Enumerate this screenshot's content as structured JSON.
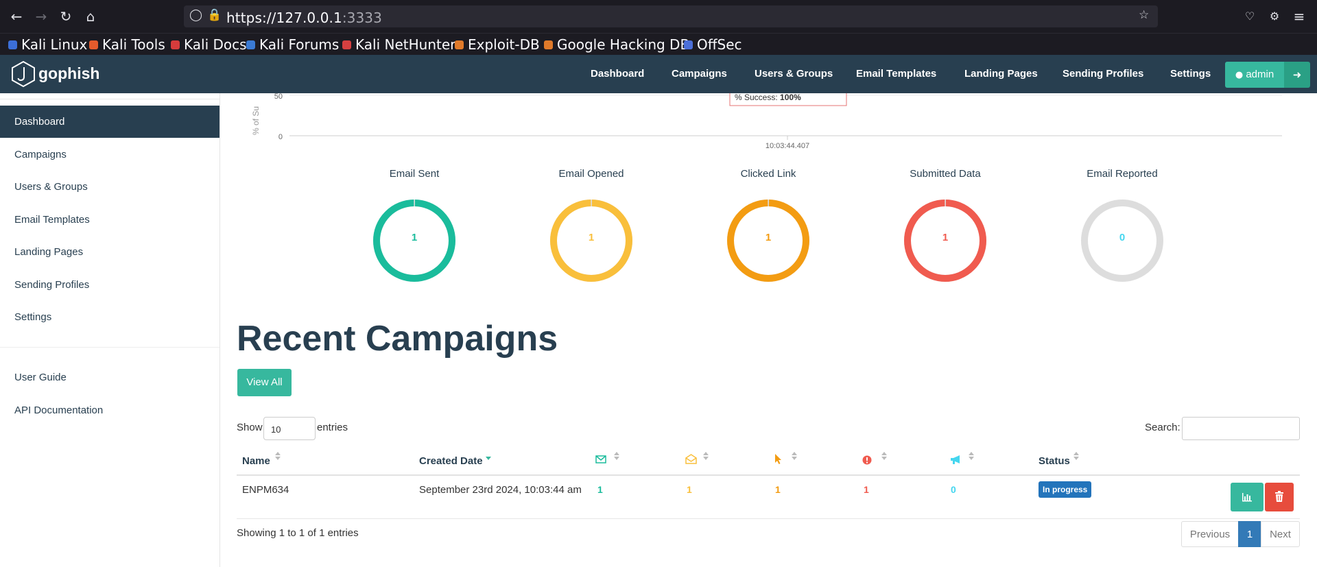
{
  "browser": {
    "url_host": "https://127.0.0.1",
    "url_port": ":3333",
    "bookmarks": [
      {
        "label": "Kali Linux",
        "color": "#3c6fd8"
      },
      {
        "label": "Kali Tools",
        "color": "#e55b2c"
      },
      {
        "label": "Kali Docs",
        "color": "#d63c3c"
      },
      {
        "label": "Kali Forums",
        "color": "#3a7ad4"
      },
      {
        "label": "Kali NetHunter",
        "color": "#d64040"
      },
      {
        "label": "Exploit-DB",
        "color": "#e07a2a"
      },
      {
        "label": "Google Hacking DB",
        "color": "#e07a2a"
      },
      {
        "label": "OffSec",
        "color": "#4b6fd8"
      }
    ]
  },
  "app": {
    "brand": "gophish",
    "nav": [
      "Dashboard",
      "Campaigns",
      "Users & Groups",
      "Email Templates",
      "Landing Pages",
      "Sending Profiles",
      "Settings"
    ],
    "user": "admin"
  },
  "sidebar": {
    "items": [
      "Dashboard",
      "Campaigns",
      "Users & Groups",
      "Email Templates",
      "Landing Pages",
      "Sending Profiles",
      "Settings"
    ],
    "bottom_items": [
      "User Guide",
      "API Documentation"
    ],
    "active": "Dashboard"
  },
  "timeline": {
    "ylabel": "% of Su",
    "ticks": [
      "50",
      "0"
    ],
    "tooltip_label": "% Success:",
    "tooltip_value": "100%",
    "x_tick": "10:03:44.407"
  },
  "stats": [
    {
      "title": "Email Sent",
      "value": "1",
      "color": "#1abc9c",
      "fraction": 1
    },
    {
      "title": "Email Opened",
      "value": "1",
      "color": "#f9bf3b",
      "fraction": 1
    },
    {
      "title": "Clicked Link",
      "value": "1",
      "color": "#f39c12",
      "fraction": 1
    },
    {
      "title": "Submitted Data",
      "value": "1",
      "color": "#f05b4f",
      "fraction": 1
    },
    {
      "title": "Email Reported",
      "value": "0",
      "color": "#45d6ef",
      "fraction": 0
    }
  ],
  "recent": {
    "title": "Recent Campaigns",
    "view_all": "View All",
    "show_label": "Show",
    "show_value": "10",
    "entries_label": "entries",
    "search_label": "Search:",
    "columns": {
      "name": "Name",
      "created": "Created Date",
      "status": "Status"
    },
    "icon_column_colors": {
      "sent": "#1abc9c",
      "opened": "#f9bf3b",
      "clicked": "#f39c12",
      "submitted": "#f05b4f",
      "reported": "#45d6ef"
    },
    "rows": [
      {
        "name": "ENPM634",
        "created": "September 23rd 2024, 10:03:44 am",
        "sent": "1",
        "opened": "1",
        "clicked": "1",
        "submitted": "1",
        "reported": "0",
        "status": "In progress"
      }
    ],
    "info": "Showing 1 to 1 of 1 entries",
    "pagination": {
      "previous": "Previous",
      "page": "1",
      "next": "Next"
    }
  }
}
